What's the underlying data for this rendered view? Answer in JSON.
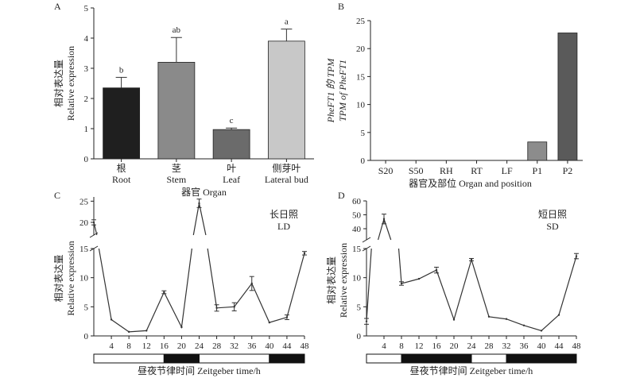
{
  "chart_data": [
    {
      "panel": "A",
      "type": "bar",
      "ylabel_cn": "相对表达量",
      "ylabel_en": "Relative expression",
      "xlabel": "器官 Organ",
      "ylim": [
        0,
        5
      ],
      "yticks": [
        0,
        1,
        2,
        3,
        4,
        5
      ],
      "categories": [
        {
          "cn": "根",
          "en": "Root",
          "value": 2.35,
          "err": 0.35,
          "sig": "b",
          "color": "#1f1f1f"
        },
        {
          "cn": "茎",
          "en": "Stem",
          "value": 3.2,
          "err": 0.82,
          "sig": "ab",
          "color": "#8a8a8a"
        },
        {
          "cn": "叶",
          "en": "Leaf",
          "value": 0.97,
          "err": 0.05,
          "sig": "c",
          "color": "#6b6b6b"
        },
        {
          "cn": "侧芽叶",
          "en": "Lateral bud",
          "value": 3.9,
          "err": 0.4,
          "sig": "a",
          "color": "#c8c8c8"
        }
      ]
    },
    {
      "panel": "B",
      "type": "bar",
      "ylabel_1": "PheFT1 的 TPM",
      "ylabel_2": "TPM of PheFT1",
      "xlabel": "器官及部位 Organ and position",
      "ylim": [
        0,
        25
      ],
      "yticks": [
        0,
        5,
        10,
        15,
        20,
        25
      ],
      "categories": [
        "S20",
        "S50",
        "RH",
        "RT",
        "LF",
        "P1",
        "P2"
      ],
      "values": [
        0,
        0,
        0,
        0,
        0,
        3.3,
        22.8
      ],
      "colors": [
        "#888888",
        "#888888",
        "#888888",
        "#888888",
        "#888888",
        "#8c8c8c",
        "#5a5a5a"
      ]
    },
    {
      "panel": "C",
      "type": "line",
      "annotation_cn": "长日照",
      "annotation_en": "LD",
      "ylabel_cn": "相对表达量",
      "ylabel_en": "Relative expression",
      "xlabel": "昼夜节律时间 Zeitgeber time/h",
      "upper_ylim": [
        17,
        26
      ],
      "upper_yticks": [
        20,
        25
      ],
      "lower_ylim": [
        0,
        15
      ],
      "lower_yticks": [
        0,
        5,
        10,
        15
      ],
      "xlim": [
        0,
        48
      ],
      "xticks": [
        4,
        8,
        12,
        16,
        20,
        24,
        28,
        32,
        36,
        40,
        44,
        48
      ],
      "x": [
        0,
        4,
        8,
        12,
        16,
        20,
        24,
        28,
        32,
        36,
        40,
        44,
        48
      ],
      "y": [
        20.0,
        2.8,
        0.7,
        0.9,
        7.5,
        1.5,
        24.5,
        4.8,
        5.0,
        9.0,
        2.3,
        3.2,
        14.2
      ],
      "err": [
        0.6,
        0,
        0,
        0,
        0.25,
        0,
        1.0,
        0.55,
        0.7,
        1.2,
        0,
        0.4,
        0.3
      ],
      "photoperiod": [
        {
          "start": 0,
          "end": 16,
          "state": "light"
        },
        {
          "start": 16,
          "end": 24,
          "state": "dark"
        },
        {
          "start": 24,
          "end": 40,
          "state": "light"
        },
        {
          "start": 40,
          "end": 48,
          "state": "dark"
        }
      ]
    },
    {
      "panel": "D",
      "type": "line",
      "annotation_cn": "短日照",
      "annotation_en": "SD",
      "ylabel_cn": "相对表达量",
      "ylabel_en": "Relative expression",
      "xlabel": "昼夜节律时间 Zeitgeber time/h",
      "upper_ylim": [
        32,
        60
      ],
      "upper_yticks": [
        40,
        50,
        60
      ],
      "lower_ylim": [
        0,
        15
      ],
      "lower_yticks": [
        0,
        5,
        10,
        15
      ],
      "xlim": [
        0,
        48
      ],
      "xticks": [
        4,
        8,
        12,
        16,
        20,
        24,
        28,
        32,
        36,
        40,
        44,
        48
      ],
      "x": [
        0,
        4,
        8,
        12,
        16,
        20,
        24,
        28,
        32,
        36,
        40,
        44,
        48
      ],
      "y": [
        2.5,
        47.0,
        9.0,
        9.8,
        11.3,
        2.8,
        13.1,
        3.3,
        2.9,
        1.8,
        0.9,
        3.6,
        13.7
      ],
      "err": [
        0.5,
        3.5,
        0.3,
        0,
        0.5,
        0,
        0.2,
        0,
        0,
        0,
        0,
        0,
        0.45
      ],
      "photoperiod": [
        {
          "start": 0,
          "end": 8,
          "state": "light"
        },
        {
          "start": 8,
          "end": 24,
          "state": "dark"
        },
        {
          "start": 24,
          "end": 32,
          "state": "light"
        },
        {
          "start": 32,
          "end": 48,
          "state": "dark"
        }
      ]
    }
  ]
}
